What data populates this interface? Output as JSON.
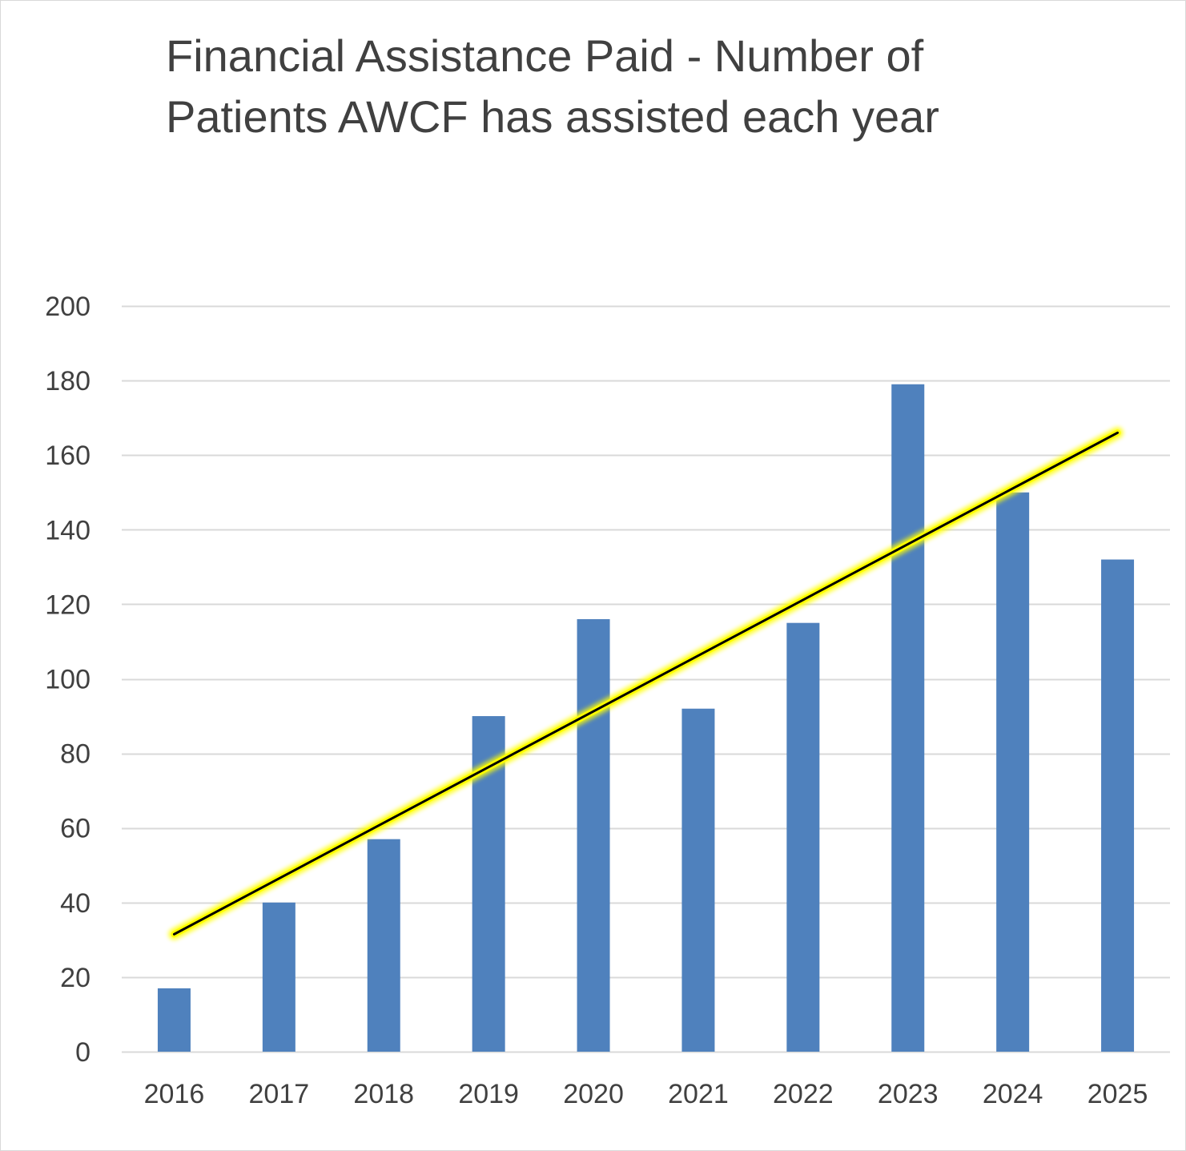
{
  "chart_data": {
    "type": "bar",
    "title_lines": [
      "Financial Assistance Paid - Number of",
      "Patients AWCF has assisted each year"
    ],
    "categories": [
      "2016",
      "2017",
      "2018",
      "2019",
      "2020",
      "2021",
      "2022",
      "2023",
      "2024",
      "2025"
    ],
    "values": [
      17,
      40,
      57,
      90,
      116,
      92,
      115,
      179,
      150,
      132
    ],
    "ylim": [
      0,
      200
    ],
    "yticks": [
      "0",
      "20",
      "40",
      "60",
      "80",
      "100",
      "120",
      "140",
      "160",
      "180",
      "200"
    ],
    "grid": true,
    "trendline": {
      "type": "linear",
      "start": 31.5,
      "end": 166
    },
    "colors": {
      "bar": "#4f81bd",
      "grid": "#d9d9d9",
      "trend_line": "#000000",
      "trend_glow": "#ffff00",
      "text": "#404040"
    }
  }
}
